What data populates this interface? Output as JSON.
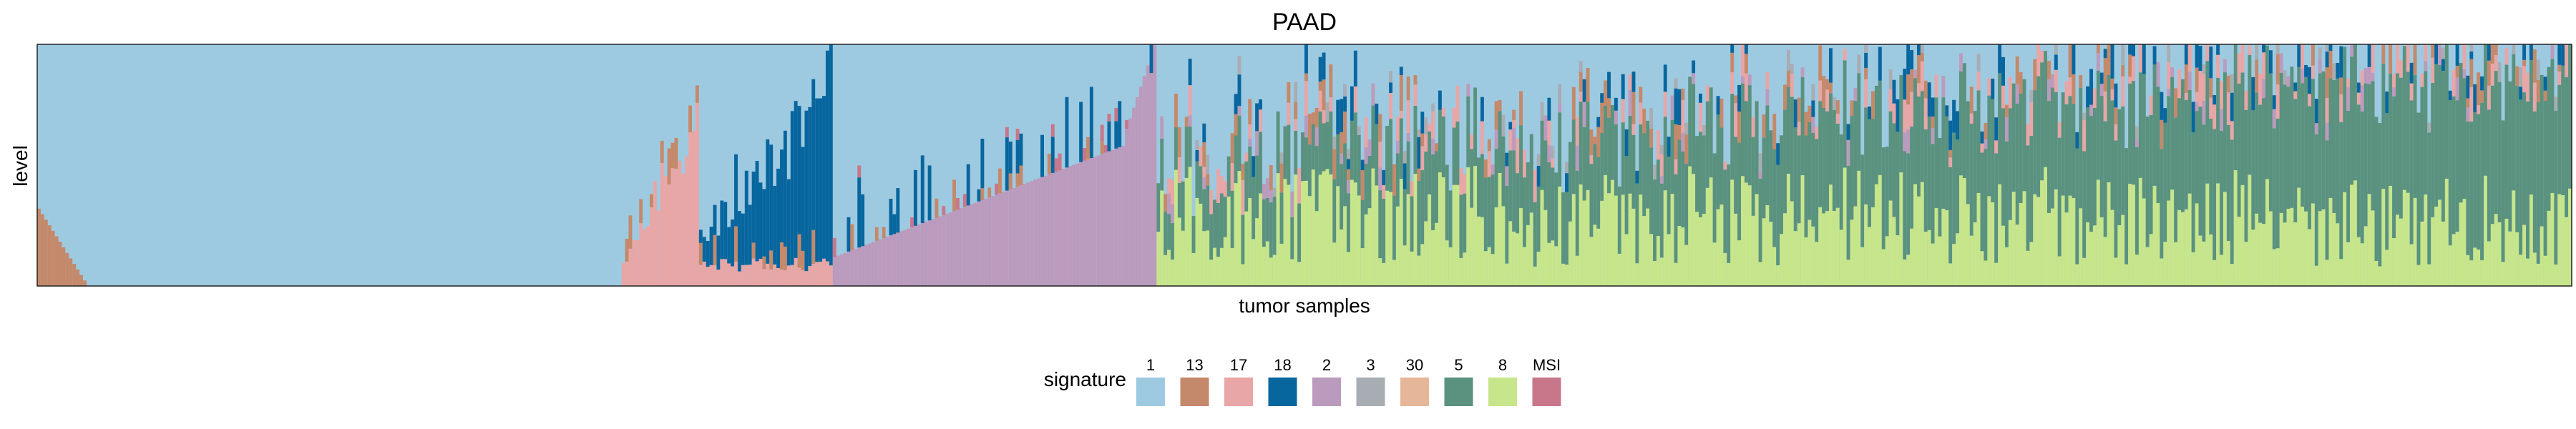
{
  "chart_data": {
    "type": "bar",
    "stacked": true,
    "normalized": true,
    "title": "PAAD",
    "xlabel": "tumor samples",
    "ylabel": "level",
    "n_samples": 720,
    "legend": {
      "title": "signature",
      "placement": "bottom",
      "entries": [
        {
          "key": "1",
          "color": "#9ecae1"
        },
        {
          "key": "13",
          "color": "#c4896a"
        },
        {
          "key": "17",
          "color": "#e8a6a6"
        },
        {
          "key": "18",
          "color": "#08669e"
        },
        {
          "key": "2",
          "color": "#bb9bbd"
        },
        {
          "key": "3",
          "color": "#a7adb3"
        },
        {
          "key": "30",
          "color": "#e5b697"
        },
        {
          "key": "5",
          "color": "#5a927f"
        },
        {
          "key": "8",
          "color": "#c7e58a"
        },
        {
          "key": "MSI",
          "color": "#c8768a"
        }
      ]
    },
    "stack_order_bottom_to_top": [
      "8",
      "5",
      "2",
      "17",
      "13",
      "18",
      "3",
      "30",
      "MSI",
      "1"
    ],
    "sample_groups": [
      {
        "dominant": "13",
        "count": 15,
        "fraction_range": [
          0.32,
          0.0
        ]
      },
      {
        "dominant": "1",
        "count": 151,
        "fraction_range": [
          0.0,
          0.0
        ]
      },
      {
        "dominant": "17",
        "count": 22,
        "fraction_range": [
          0.12,
          0.88
        ]
      },
      {
        "dominant": "18",
        "count": 38,
        "fraction_range": [
          0.1,
          1.0
        ]
      },
      {
        "dominant": "2",
        "count": 83,
        "fraction_range": [
          0.12,
          0.58
        ]
      },
      {
        "dominant": "2",
        "count": 9,
        "fraction_range": [
          0.65,
          1.0
        ]
      },
      {
        "dominant": "5",
        "count": 402,
        "fraction_range": [
          0.13,
          0.58
        ]
      }
    ],
    "grid": false
  }
}
